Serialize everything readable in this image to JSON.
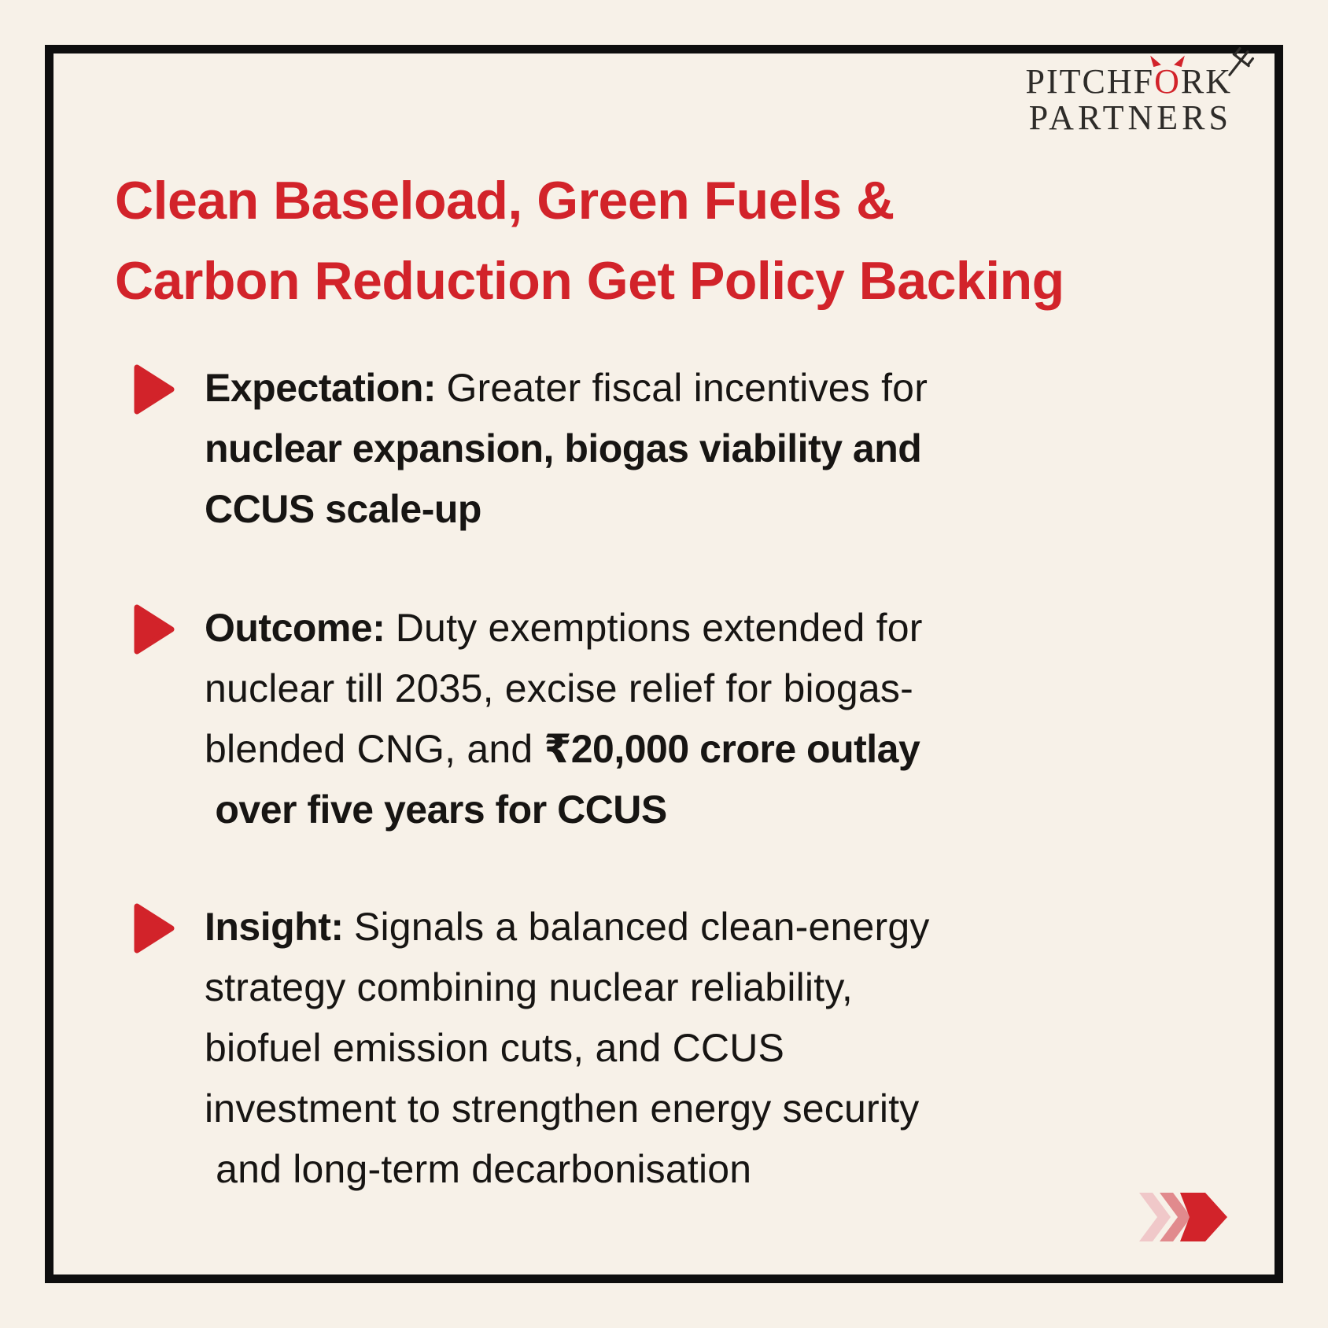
{
  "colors": {
    "background_cream": "#F7F1E8",
    "accent_red": "#D2232A",
    "body_ink": "#171513",
    "logo_ink": "#2E2C29",
    "frame_black": "#0E0E0E",
    "chevron_light_pink": "#F0C8C9",
    "chevron_mid_pink": "#E18A8D"
  },
  "logo": {
    "line1_pre": "PITCHF",
    "line1_o": "O",
    "line1_post": "RK",
    "line2": "PARTNERS",
    "icons": [
      "devil-horns-o",
      "pitchfork-icon"
    ]
  },
  "title": {
    "lines": [
      "Clean Baseload, Green Fuels &",
      "Carbon Reduction Get Policy Backing"
    ]
  },
  "bullets": [
    {
      "marker_icon": "red-play-triangle",
      "lines": [
        [
          {
            "t": "Expectation: ",
            "b": true
          },
          {
            "t": "Greater fiscal incentives for",
            "b": false
          }
        ],
        [
          {
            "t": "nuclear expansion, biogas viability and",
            "b": true
          }
        ],
        [
          {
            "t": "CCUS scale-up",
            "b": true
          }
        ]
      ]
    },
    {
      "marker_icon": "red-play-triangle",
      "lines": [
        [
          {
            "t": "Outcome: ",
            "b": true
          },
          {
            "t": "Duty exemptions extended for",
            "b": false
          }
        ],
        [
          {
            "t": "nuclear till 2035, excise relief for biogas-",
            "b": false
          }
        ],
        [
          {
            "t": "blended CNG, and ",
            "b": false
          },
          {
            "t": "₹20,000 crore outlay",
            "b": true
          }
        ],
        [
          {
            "t": " over five years for CCUS",
            "b": true
          }
        ]
      ]
    },
    {
      "marker_icon": "red-play-triangle",
      "lines": [
        [
          {
            "t": "Insight: ",
            "b": true
          },
          {
            "t": "Signals a balanced clean-energy",
            "b": false
          }
        ],
        [
          {
            "t": "strategy combining nuclear reliability,",
            "b": false
          }
        ],
        [
          {
            "t": "biofuel emission cuts, and CCUS",
            "b": false
          }
        ],
        [
          {
            "t": "investment to strengthen energy security",
            "b": false
          }
        ],
        [
          {
            "t": " and long-term decarbonisation",
            "b": false
          }
        ]
      ]
    }
  ],
  "footer": {
    "icon": "triple-chevron-right-arrow"
  }
}
